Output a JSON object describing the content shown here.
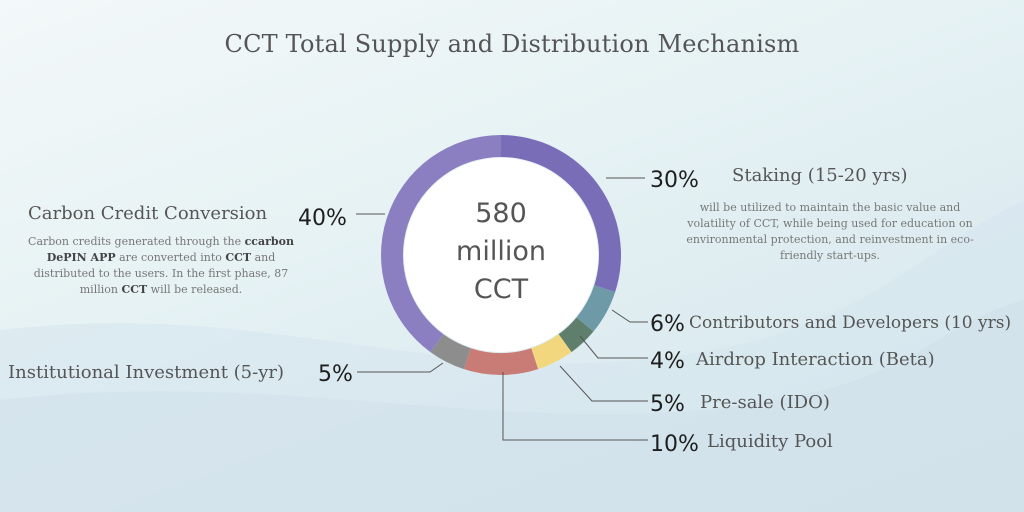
{
  "chart_data": {
    "type": "pie",
    "title": "CCT Total Supply and Distribution Mechanism",
    "center_label": [
      "580",
      "million",
      "CCT"
    ],
    "slices": [
      {
        "label": "Staking (15-20 yrs)",
        "value": 30,
        "pct_text": "30%",
        "color": "#7a6db8",
        "description": "will be utilized to maintain the basic value and volatility of CCT, while being used for education on environmental protection, and reinvestment in eco-friendly start-ups."
      },
      {
        "label": "Contributors and Developers (10 yrs)",
        "value": 6,
        "pct_text": "6%",
        "color": "#6e9aa8"
      },
      {
        "label": "Airdrop Interaction (Beta)",
        "value": 4,
        "pct_text": "4%",
        "color": "#5f7f6c"
      },
      {
        "label": "Pre-sale (IDO)",
        "value": 5,
        "pct_text": "5%",
        "color": "#f2d77e"
      },
      {
        "label": "Liquidity Pool",
        "value": 10,
        "pct_text": "10%",
        "color": "#c97c76"
      },
      {
        "label": "Institutional Investment (5-yr)",
        "value": 5,
        "pct_text": "5%",
        "color": "#8d8d8d"
      },
      {
        "label": "Carbon Credit Conversion",
        "value": 40,
        "pct_text": "40%",
        "color": "#8b7fc2",
        "description_parts": [
          "Carbon credits generated through the ",
          "ccarbon DePIN APP",
          " are converted into ",
          "CCT",
          " and distributed to the users. In the first phase, 87 million ",
          "CCT",
          " will be released."
        ]
      }
    ]
  }
}
